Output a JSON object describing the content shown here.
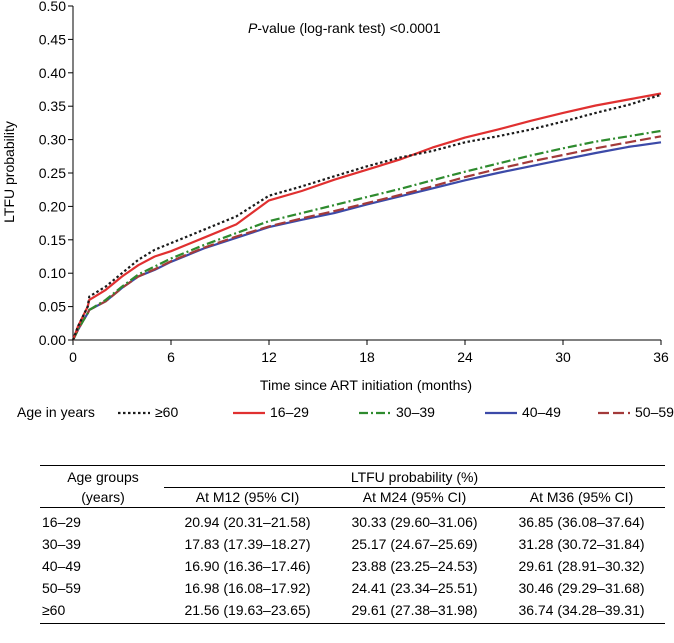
{
  "chart_data": {
    "type": "line",
    "title": "",
    "annotation_italic": "P",
    "annotation_rest": "-value (log-rank test) <0.0001",
    "xlabel": "Time since ART initiation (months)",
    "ylabel": "LTFU probability",
    "xlim": [
      0,
      36
    ],
    "ylim": [
      0,
      0.5
    ],
    "xticks": [
      "0",
      "6",
      "12",
      "18",
      "24",
      "30",
      "36"
    ],
    "xtick_values": [
      0,
      6,
      12,
      18,
      24,
      30,
      36
    ],
    "yticks": [
      "0.00",
      "0.05",
      "0.10",
      "0.15",
      "0.20",
      "0.25",
      "0.30",
      "0.35",
      "0.40",
      "0.45",
      "0.50"
    ],
    "ytick_values": [
      0,
      0.05,
      0.1,
      0.15,
      0.2,
      0.25,
      0.3,
      0.35,
      0.4,
      0.45,
      0.5
    ],
    "legend_title": "Age in years",
    "series": [
      {
        "name": "≥60",
        "color": "#1a1a1a",
        "dash": "dotted",
        "x": [
          0,
          0.3,
          0.6,
          0.9,
          1.0,
          2,
          3,
          4,
          5,
          6,
          7,
          8,
          10,
          12,
          14,
          16,
          18,
          20,
          22,
          24,
          26,
          28,
          30,
          32,
          34,
          36
        ],
        "y": [
          0,
          0.02,
          0.035,
          0.05,
          0.065,
          0.08,
          0.1,
          0.12,
          0.135,
          0.145,
          0.155,
          0.165,
          0.185,
          0.216,
          0.23,
          0.245,
          0.26,
          0.273,
          0.283,
          0.296,
          0.305,
          0.315,
          0.327,
          0.34,
          0.352,
          0.367
        ]
      },
      {
        "name": "16–29",
        "color": "#e03030",
        "dash": "solid",
        "x": [
          0,
          0.3,
          0.6,
          0.9,
          1.0,
          2,
          3,
          4,
          5,
          6,
          7,
          8,
          10,
          12,
          14,
          16,
          18,
          20,
          22,
          24,
          26,
          28,
          30,
          32,
          34,
          36
        ],
        "y": [
          0,
          0.02,
          0.035,
          0.05,
          0.06,
          0.075,
          0.095,
          0.112,
          0.125,
          0.133,
          0.143,
          0.153,
          0.173,
          0.209,
          0.223,
          0.24,
          0.255,
          0.27,
          0.288,
          0.303,
          0.315,
          0.328,
          0.34,
          0.351,
          0.36,
          0.369
        ]
      },
      {
        "name": "30–39",
        "color": "#2e8b2e",
        "dash": "dashdot",
        "x": [
          0,
          0.3,
          0.6,
          0.9,
          1.0,
          2,
          3,
          4,
          5,
          6,
          7,
          8,
          10,
          12,
          14,
          16,
          18,
          20,
          22,
          24,
          26,
          28,
          30,
          32,
          34,
          36
        ],
        "y": [
          0,
          0.015,
          0.028,
          0.04,
          0.045,
          0.06,
          0.08,
          0.098,
          0.11,
          0.122,
          0.132,
          0.142,
          0.16,
          0.178,
          0.19,
          0.202,
          0.214,
          0.226,
          0.239,
          0.252,
          0.264,
          0.276,
          0.287,
          0.297,
          0.305,
          0.313
        ]
      },
      {
        "name": "40–49",
        "color": "#3c4aa8",
        "dash": "solid",
        "x": [
          0,
          0.3,
          0.6,
          0.9,
          1.0,
          2,
          3,
          4,
          5,
          6,
          7,
          8,
          10,
          12,
          14,
          16,
          18,
          20,
          22,
          24,
          26,
          28,
          30,
          32,
          34,
          36
        ],
        "y": [
          0,
          0.015,
          0.028,
          0.04,
          0.045,
          0.058,
          0.078,
          0.095,
          0.105,
          0.117,
          0.127,
          0.137,
          0.153,
          0.169,
          0.18,
          0.19,
          0.203,
          0.215,
          0.227,
          0.239,
          0.25,
          0.26,
          0.27,
          0.28,
          0.289,
          0.296
        ]
      },
      {
        "name": "50–59",
        "color": "#a33a3a",
        "dash": "longdash",
        "x": [
          0,
          0.3,
          0.6,
          0.9,
          1.0,
          2,
          3,
          4,
          5,
          6,
          7,
          8,
          10,
          12,
          14,
          16,
          18,
          20,
          22,
          24,
          26,
          28,
          30,
          32,
          34,
          36
        ],
        "y": [
          0,
          0.015,
          0.028,
          0.04,
          0.045,
          0.058,
          0.078,
          0.095,
          0.106,
          0.118,
          0.128,
          0.138,
          0.155,
          0.17,
          0.182,
          0.193,
          0.205,
          0.217,
          0.23,
          0.244,
          0.256,
          0.267,
          0.277,
          0.287,
          0.296,
          0.305
        ]
      }
    ]
  },
  "table": {
    "group_header_line1": "Age groups",
    "group_header_line2": "(years)",
    "span_header": "LTFU probability (%)",
    "columns": [
      "At M12 (95% CI)",
      "At M24 (95% CI)",
      "At M36 (95% CI)"
    ],
    "rows": [
      {
        "group": "16–29",
        "values": [
          "20.94 (20.31–21.58)",
          "30.33 (29.60–31.06)",
          "36.85 (36.08–37.64)"
        ]
      },
      {
        "group": "30–39",
        "values": [
          "17.83 (17.39–18.27)",
          "25.17 (24.67–25.69)",
          "31.28 (30.72–31.84)"
        ]
      },
      {
        "group": "40–49",
        "values": [
          "16.90 (16.36–17.46)",
          "23.88 (23.25–24.53)",
          "29.61 (28.91–30.32)"
        ]
      },
      {
        "group": "50–59",
        "values": [
          "16.98 (16.08–17.92)",
          "24.41 (23.34–25.51)",
          "30.46 (29.29–31.68)"
        ]
      },
      {
        "group": "≥60",
        "values": [
          "21.56 (19.63–23.65)",
          "29.61 (27.38–31.98)",
          "36.74 (34.28–39.31)"
        ]
      }
    ]
  }
}
